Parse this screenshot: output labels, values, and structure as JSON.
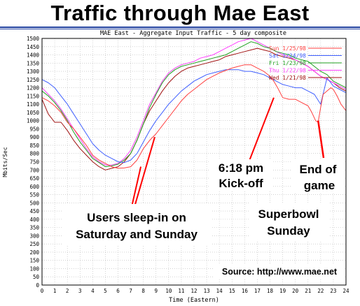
{
  "title": "Traffic through Mae East",
  "chart_data": {
    "type": "line",
    "title": "MAE East - Aggregate Input Traffic - 5 day composite",
    "xlabel": "Time (Eastern)",
    "ylabel": "Mbits/Sec",
    "xlim": [
      0,
      24
    ],
    "ylim": [
      0,
      1500
    ],
    "x_ticks": [
      0,
      1,
      2,
      3,
      4,
      5,
      6,
      7,
      8,
      9,
      10,
      11,
      12,
      13,
      14,
      15,
      16,
      17,
      18,
      19,
      20,
      21,
      22,
      23,
      24
    ],
    "y_ticks": [
      0,
      50,
      100,
      150,
      200,
      250,
      300,
      350,
      400,
      450,
      500,
      550,
      600,
      650,
      700,
      750,
      800,
      850,
      900,
      950,
      1000,
      1050,
      1100,
      1150,
      1200,
      1250,
      1300,
      1350,
      1400,
      1450,
      1500
    ],
    "grid": true,
    "legend_position": "top-right",
    "series": [
      {
        "name": "Sun 1/25/98",
        "color": "#ff4040",
        "x": [
          0,
          0.5,
          1,
          1.5,
          2,
          2.5,
          3,
          3.5,
          4,
          4.5,
          5,
          5.5,
          6,
          6.5,
          7,
          7.5,
          8,
          8.5,
          9,
          9.5,
          10,
          10.5,
          11,
          11.5,
          12,
          12.5,
          13,
          13.5,
          14,
          14.5,
          15,
          15.5,
          16,
          16.5,
          17,
          17.5,
          18,
          18.3,
          18.6,
          19,
          19.5,
          20,
          20.5,
          21,
          21.3,
          21.6,
          21.8,
          22,
          22.2,
          22.5,
          22.8,
          23,
          23.3,
          23.6,
          24
        ],
        "values": [
          1140,
          1120,
          1090,
          1050,
          990,
          950,
          900,
          850,
          790,
          760,
          740,
          720,
          710,
          712,
          720,
          760,
          830,
          880,
          920,
          970,
          1020,
          1070,
          1120,
          1160,
          1190,
          1220,
          1250,
          1270,
          1290,
          1305,
          1320,
          1330,
          1340,
          1340,
          1320,
          1300,
          1270,
          1240,
          1200,
          1140,
          1130,
          1130,
          1110,
          1090,
          1050,
          1000,
          990,
          1080,
          1160,
          1180,
          1200,
          1190,
          1150,
          1100,
          1060
        ]
      },
      {
        "name": "Sat 1/24/98",
        "color": "#4060ff",
        "x": [
          0,
          0.5,
          1,
          1.5,
          2,
          2.5,
          3,
          3.5,
          4,
          4.5,
          5,
          5.5,
          6,
          6.5,
          7,
          7.5,
          8,
          8.5,
          9,
          9.5,
          10,
          10.5,
          11,
          11.5,
          12,
          12.5,
          13,
          13.5,
          14,
          14.5,
          15,
          15.5,
          16,
          16.5,
          17,
          17.5,
          18,
          18.5,
          19,
          19.5,
          20,
          20.5,
          21,
          21.5,
          22,
          22.5,
          23,
          23.5,
          24
        ],
        "values": [
          1250,
          1230,
          1200,
          1150,
          1100,
          1040,
          980,
          920,
          860,
          820,
          790,
          770,
          750,
          745,
          760,
          800,
          870,
          940,
          1000,
          1050,
          1100,
          1140,
          1180,
          1210,
          1240,
          1260,
          1280,
          1290,
          1300,
          1310,
          1310,
          1310,
          1300,
          1300,
          1290,
          1280,
          1260,
          1240,
          1220,
          1210,
          1200,
          1200,
          1180,
          1160,
          1100,
          1260,
          1210,
          1190,
          1170
        ]
      },
      {
        "name": "Fri 1/23/98",
        "color": "#20a020",
        "x": [
          0,
          0.5,
          1,
          1.5,
          2,
          2.5,
          3,
          3.5,
          4,
          4.5,
          5,
          5.5,
          6,
          6.5,
          7,
          7.5,
          8,
          8.5,
          9,
          9.5,
          10,
          10.5,
          11,
          11.5,
          12,
          12.5,
          13,
          13.5,
          14,
          14.5,
          15,
          15.5,
          16,
          16.5,
          17,
          17.5,
          18,
          18.5,
          19,
          19.5,
          20,
          20.5,
          21,
          21.5,
          22,
          22.5,
          23,
          23.5,
          24
        ],
        "values": [
          1180,
          1150,
          1110,
          1060,
          1000,
          930,
          870,
          820,
          770,
          745,
          720,
          725,
          735,
          760,
          800,
          880,
          980,
          1080,
          1160,
          1230,
          1280,
          1310,
          1330,
          1340,
          1350,
          1360,
          1370,
          1380,
          1390,
          1400,
          1420,
          1440,
          1460,
          1480,
          1470,
          1450,
          1440,
          1420,
          1410,
          1400,
          1380,
          1370,
          1360,
          1330,
          1300,
          1280,
          1240,
          1220,
          1200
        ]
      },
      {
        "name": "Thu 1/22/98",
        "color": "#ff40ff",
        "x": [
          0,
          0.5,
          1,
          1.5,
          2,
          2.5,
          3,
          3.5,
          4,
          4.5,
          5,
          5.5,
          6,
          6.5,
          7,
          7.5,
          8,
          8.5,
          9,
          9.5,
          10,
          10.5,
          11,
          11.5,
          12,
          12.5,
          13,
          13.5,
          14,
          14.5,
          15,
          15.5,
          16,
          16.5,
          17,
          17.5,
          18,
          18.5,
          19,
          19.5,
          20,
          20.5,
          21,
          21.5,
          22,
          22.5,
          23,
          23.5,
          24
        ],
        "values": [
          1200,
          1160,
          1120,
          1070,
          1010,
          950,
          890,
          830,
          780,
          750,
          730,
          730,
          740,
          770,
          820,
          900,
          1000,
          1100,
          1170,
          1240,
          1290,
          1320,
          1340,
          1350,
          1360,
          1380,
          1390,
          1400,
          1420,
          1440,
          1460,
          1480,
          1490,
          1500,
          1480,
          1460,
          1440,
          1420,
          1400,
          1390,
          1370,
          1350,
          1330,
          1300,
          1270,
          1250,
          1230,
          1210,
          1190
        ]
      },
      {
        "name": "Wed 1/21/98",
        "color": "#a01010",
        "x": [
          0,
          0.5,
          1,
          1.5,
          2,
          2.5,
          3,
          3.5,
          4,
          4.5,
          5,
          5.5,
          6,
          6.5,
          7,
          7.5,
          8,
          8.5,
          9,
          9.5,
          10,
          10.5,
          11,
          11.5,
          12,
          12.5,
          13,
          13.5,
          14,
          14.5,
          15,
          15.5,
          16,
          16.5,
          17,
          17.5,
          18,
          18.5,
          19,
          19.5,
          20,
          20.5,
          21,
          21.5,
          22,
          22.5,
          23,
          23.5,
          24
        ],
        "values": [
          1130,
          1040,
          990,
          990,
          940,
          880,
          830,
          790,
          750,
          720,
          700,
          710,
          720,
          750,
          800,
          880,
          980,
          1060,
          1120,
          1180,
          1230,
          1270,
          1300,
          1320,
          1330,
          1340,
          1350,
          1360,
          1370,
          1390,
          1400,
          1410,
          1420,
          1430,
          1440,
          1430,
          1420,
          1400,
          1390,
          1380,
          1370,
          1350,
          1330,
          1300,
          1270,
          1250,
          1230,
          1200,
          1180
        ]
      }
    ],
    "annotations": [
      {
        "id": "sleep",
        "lines": [
          "Users sleep-in on",
          "Saturday and Sunday"
        ],
        "points_to": [
          [
            7.8,
            720
          ],
          [
            8.9,
            900
          ]
        ]
      },
      {
        "id": "kickoff",
        "lines": [
          "6:18 pm",
          "Kick-off"
        ],
        "points_to": [
          [
            18.3,
            1140
          ]
        ]
      },
      {
        "id": "endgame",
        "lines": [
          "End of",
          "game"
        ],
        "points_to": [
          [
            21.8,
            1000
          ]
        ]
      },
      {
        "id": "superbowl",
        "lines": [
          "Superbowl",
          "Sunday"
        ]
      },
      {
        "id": "source",
        "lines": [
          "Source: http://www.mae.net"
        ]
      }
    ]
  }
}
